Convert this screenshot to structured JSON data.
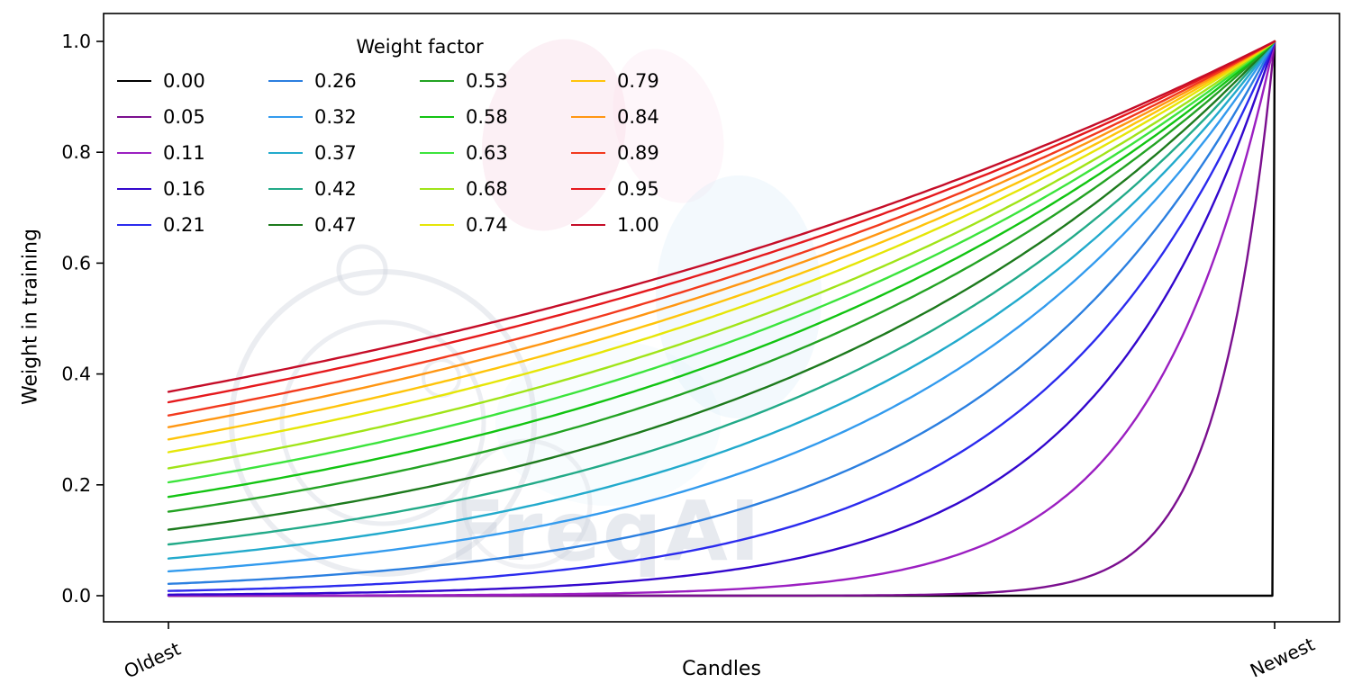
{
  "watermark": {
    "text": "FreqAI"
  },
  "chart_data": {
    "type": "line",
    "title": "",
    "xlabel": "Candles",
    "ylabel": "Weight in training",
    "x_tick_labels": [
      "Oldest",
      "Newest"
    ],
    "y_ticks": [
      0.0,
      0.2,
      0.4,
      0.6,
      0.8,
      1.0
    ],
    "y_tick_labels": [
      "0.0",
      "0.2",
      "0.4",
      "0.6",
      "0.8",
      "1.0"
    ],
    "ylim": [
      0,
      1
    ],
    "grid": false,
    "legend": {
      "title": "Weight factor",
      "position": "upper-left",
      "columns": 4,
      "rows": 5,
      "fill_order": "column-major"
    },
    "curve_formula": "weight(t) = exp(-(1 - t) / factor), with t = 0 at the oldest candle and t = 1 at the newest candle; factor = 0.00 stays at 0 until the newest candle",
    "t_samples": [
      0,
      0.25,
      0.5,
      0.75,
      1
    ],
    "series": [
      {
        "factor": "0.00",
        "color": "#000000",
        "values": [
          0,
          0,
          0,
          0,
          1
        ]
      },
      {
        "factor": "0.05",
        "color": "#7b0f8f",
        "values": [
          0,
          0,
          0.0001,
          0.0067,
          1
        ]
      },
      {
        "factor": "0.11",
        "color": "#9b1fc1",
        "values": [
          0.0001,
          0.0011,
          0.0106,
          0.1031,
          1
        ]
      },
      {
        "factor": "0.16",
        "color": "#3307cd",
        "values": [
          0.0019,
          0.0092,
          0.0439,
          0.2096,
          1
        ]
      },
      {
        "factor": "0.21",
        "color": "#2b2bee",
        "values": [
          0.0086,
          0.0281,
          0.0924,
          0.3041,
          1
        ]
      },
      {
        "factor": "0.26",
        "color": "#2b7fe0",
        "values": [
          0.0214,
          0.0559,
          0.1461,
          0.3823,
          1
        ]
      },
      {
        "factor": "0.32",
        "color": "#339bee",
        "values": [
          0.0439,
          0.096,
          0.2096,
          0.4579,
          1
        ]
      },
      {
        "factor": "0.37",
        "color": "#22aacc",
        "values": [
          0.067,
          0.1317,
          0.2589,
          0.5087,
          1
        ]
      },
      {
        "factor": "0.42",
        "color": "#22aa88",
        "values": [
          0.0924,
          0.1677,
          0.3041,
          0.5515,
          1
        ]
      },
      {
        "factor": "0.47",
        "color": "#1d7a1d",
        "values": [
          0.1191,
          0.2027,
          0.3452,
          0.5874,
          1
        ]
      },
      {
        "factor": "0.53",
        "color": "#23a323",
        "values": [
          0.1516,
          0.243,
          0.3893,
          0.624,
          1
        ]
      },
      {
        "factor": "0.58",
        "color": "#12c412",
        "values": [
          0.1783,
          0.2744,
          0.4223,
          0.6499,
          1
        ]
      },
      {
        "factor": "0.63",
        "color": "#3ce43c",
        "values": [
          0.2045,
          0.3041,
          0.4522,
          0.6724,
          1
        ]
      },
      {
        "factor": "0.68",
        "color": "#a0e418",
        "values": [
          0.2298,
          0.3319,
          0.4795,
          0.6923,
          1
        ]
      },
      {
        "factor": "0.74",
        "color": "#e6e607",
        "values": [
          0.2589,
          0.3629,
          0.5088,
          0.7132,
          1
        ]
      },
      {
        "factor": "0.79",
        "color": "#ffc40a",
        "values": [
          0.282,
          0.3869,
          0.5312,
          0.7288,
          1
        ]
      },
      {
        "factor": "0.84",
        "color": "#ff9612",
        "values": [
          0.3041,
          0.4094,
          0.5515,
          0.7425,
          1
        ]
      },
      {
        "factor": "0.89",
        "color": "#f2391d",
        "values": [
          0.3251,
          0.4305,
          0.5701,
          0.7552,
          1
        ]
      },
      {
        "factor": "0.95",
        "color": "#e5191d",
        "values": [
          0.3489,
          0.4539,
          0.5908,
          0.7686,
          1
        ]
      },
      {
        "factor": "1.00",
        "color": "#c50d28",
        "values": [
          0.3679,
          0.4724,
          0.6065,
          0.7788,
          1
        ]
      }
    ]
  }
}
